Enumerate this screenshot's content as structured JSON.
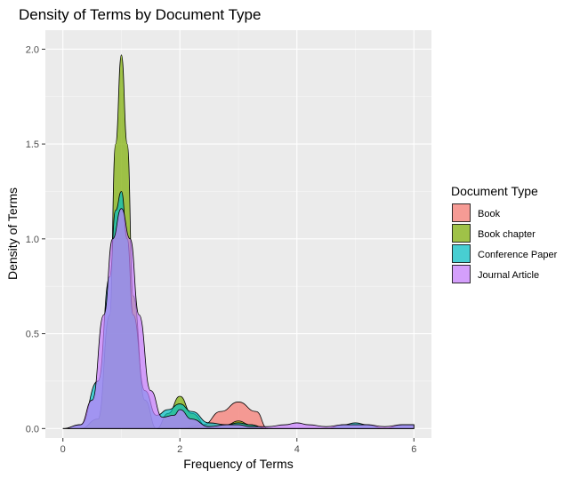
{
  "chart_data": {
    "type": "area",
    "subtype": "density",
    "title": "Density of Terms by Document Type",
    "xlabel": "Frequency of Terms",
    "ylabel": "Density of Terms",
    "xlim": [
      -0.3,
      6.3
    ],
    "ylim": [
      -0.05,
      2.1
    ],
    "x_ticks": [
      0,
      2,
      4,
      6
    ],
    "y_ticks": [
      0.0,
      0.5,
      1.0,
      1.5,
      2.0
    ],
    "x_tick_labels": [
      "0",
      "2",
      "4",
      "6"
    ],
    "y_tick_labels": [
      "0.0",
      "0.5",
      "1.0",
      "1.5",
      "2.0"
    ],
    "grid": true,
    "legend_position": "right",
    "legend_title": "Document Type",
    "series": [
      {
        "name": "Book",
        "color": "#F8766D",
        "x": [
          1.6,
          2.0,
          2.4,
          2.7,
          3.0,
          3.3,
          3.5
        ],
        "y": [
          0.0,
          0.0,
          0.02,
          0.09,
          0.14,
          0.09,
          0.0
        ]
      },
      {
        "name": "Book chapter",
        "color": "#7CAE00",
        "x": [
          0.3,
          0.6,
          0.8,
          0.9,
          1.0,
          1.1,
          1.2,
          1.4,
          1.6,
          1.8,
          2.0,
          2.2,
          2.5,
          2.8,
          3.0,
          3.2,
          3.5,
          4.0,
          5.0,
          6.0
        ],
        "y": [
          0.0,
          0.05,
          0.6,
          1.5,
          1.97,
          1.5,
          0.7,
          0.15,
          0.0,
          0.08,
          0.17,
          0.08,
          0.0,
          0.02,
          0.04,
          0.02,
          0.0,
          0.0,
          0.0,
          0.0
        ]
      },
      {
        "name": "Conference Paper",
        "color": "#00BFC4",
        "x": [
          0.0,
          0.3,
          0.6,
          0.8,
          0.9,
          1.0,
          1.1,
          1.2,
          1.4,
          1.6,
          1.8,
          2.0,
          2.2,
          2.5,
          2.8,
          3.0,
          3.2,
          3.5,
          4.0,
          4.5,
          4.8,
          5.0,
          5.2,
          5.5,
          5.8,
          6.0
        ],
        "y": [
          0.0,
          0.02,
          0.25,
          0.8,
          1.15,
          1.25,
          1.0,
          0.6,
          0.2,
          0.07,
          0.1,
          0.13,
          0.09,
          0.03,
          0.02,
          0.03,
          0.02,
          0.0,
          0.0,
          0.0,
          0.02,
          0.03,
          0.02,
          0.0,
          0.02,
          0.02
        ]
      },
      {
        "name": "Journal Article",
        "color": "#C77CFF",
        "x": [
          0.0,
          0.3,
          0.5,
          0.7,
          0.85,
          1.0,
          1.15,
          1.3,
          1.5,
          1.7,
          1.9,
          2.0,
          2.2,
          2.5,
          2.8,
          3.0,
          3.2,
          3.5,
          3.8,
          4.0,
          4.2,
          4.5,
          4.8,
          5.0,
          5.2,
          5.5,
          5.8,
          6.0
        ],
        "y": [
          0.0,
          0.02,
          0.15,
          0.6,
          1.0,
          1.16,
          1.0,
          0.6,
          0.2,
          0.06,
          0.07,
          0.1,
          0.05,
          0.01,
          0.02,
          0.02,
          0.01,
          0.01,
          0.02,
          0.03,
          0.02,
          0.01,
          0.02,
          0.02,
          0.02,
          0.01,
          0.02,
          0.02
        ]
      }
    ]
  }
}
